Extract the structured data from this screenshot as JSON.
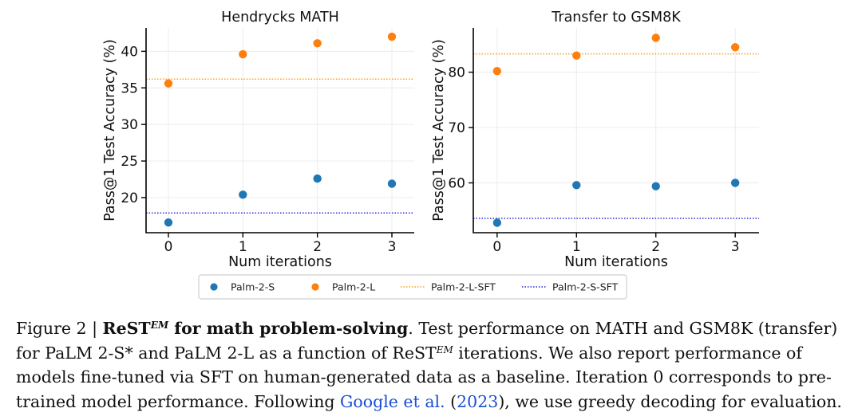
{
  "chart_data": [
    {
      "type": "scatter",
      "title": "Hendrycks MATH",
      "xlabel": "Num iterations",
      "ylabel": "Pass@1 Test Accuracy (%)",
      "x": [
        0,
        1,
        2,
        3
      ],
      "xlim": [
        -0.3,
        3.3
      ],
      "ylim": [
        15.2,
        43.2
      ],
      "yticks": [
        20,
        25,
        30,
        35,
        40
      ],
      "grid": true,
      "series": [
        {
          "name": "Palm-2-S",
          "color": "#1f77b4",
          "values": [
            16.6,
            20.4,
            22.6,
            21.9
          ]
        },
        {
          "name": "Palm-2-L",
          "color": "#ff7f0e",
          "values": [
            35.6,
            39.6,
            41.1,
            42.0
          ]
        }
      ],
      "baselines": [
        {
          "name": "Palm-2-L-SFT",
          "color": "#ff9f1a",
          "value": 36.2
        },
        {
          "name": "Palm-2-S-SFT",
          "color": "#2b2bd9",
          "value": 17.9
        }
      ]
    },
    {
      "type": "scatter",
      "title": "Transfer to GSM8K",
      "xlabel": "Num iterations",
      "ylabel": "Pass@1 Test Accuracy (%)",
      "x": [
        0,
        1,
        2,
        3
      ],
      "xlim": [
        -0.3,
        3.3
      ],
      "ylim": [
        51.0,
        88.0
      ],
      "yticks": [
        60,
        70,
        80
      ],
      "grid": true,
      "series": [
        {
          "name": "Palm-2-S",
          "color": "#1f77b4",
          "values": [
            52.8,
            59.6,
            59.4,
            60.0
          ]
        },
        {
          "name": "Palm-2-L",
          "color": "#ff7f0e",
          "values": [
            80.2,
            83.0,
            86.2,
            84.5
          ]
        }
      ],
      "baselines": [
        {
          "name": "Palm-2-L-SFT",
          "color": "#ff9f1a",
          "value": 83.3
        },
        {
          "name": "Palm-2-S-SFT",
          "color": "#2b2bd9",
          "value": 53.6
        }
      ]
    }
  ],
  "legend": {
    "placement": "bottom-center",
    "entries": [
      {
        "label": "Palm-2-S",
        "kind": "marker",
        "color": "#1f77b4"
      },
      {
        "label": "Palm-2-L",
        "kind": "marker",
        "color": "#ff7f0e"
      },
      {
        "label": "Palm-2-L-SFT",
        "kind": "dotted-line",
        "color": "#ff9f1a"
      },
      {
        "label": "Palm-2-S-SFT",
        "kind": "dotted-line",
        "color": "#2b2bd9"
      }
    ]
  },
  "caption": {
    "prefix": "Figure 2 | ",
    "bold_main": "ReST",
    "sup": "EM",
    "bold_tail": " for math problem-solving",
    "text1": ". Test performance on MATH and GSM8K (transfer) for PaLM 2-S* and PaLM 2-L as a function of ReST",
    "text2": " iterations. We also report performance of models fine-tuned via SFT on human-generated data as a baseline. Iteration 0 corresponds to pre-trained model performance. Following ",
    "cite_name": "Google et al.",
    "cite_year": "2023",
    "text3": "), we use greedy decoding for evaluation."
  }
}
